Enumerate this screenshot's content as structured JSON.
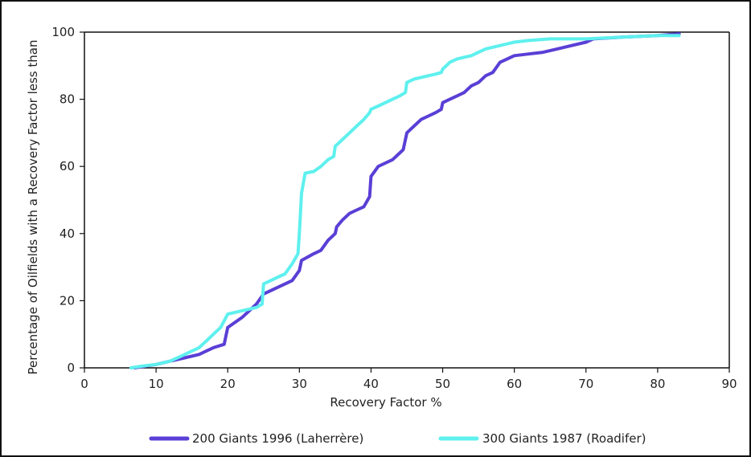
{
  "chart_data": {
    "type": "line",
    "xlabel": "Recovery Factor %",
    "ylabel": "Percentage of Oilfields with a Recovery Factor less than",
    "xlim": [
      0,
      90
    ],
    "ylim": [
      0,
      100
    ],
    "xticks": [
      "0",
      "10",
      "20",
      "30",
      "40",
      "50",
      "60",
      "70",
      "80",
      "90"
    ],
    "yticks": [
      "0",
      "20",
      "40",
      "60",
      "80",
      "100"
    ],
    "grid": false,
    "legend_position": "bottom",
    "series": [
      {
        "name": "200 Giants 1996 (Laherrère)",
        "color": "#5a3fd6",
        "points": [
          [
            7,
            0
          ],
          [
            10,
            1
          ],
          [
            12,
            2
          ],
          [
            14,
            3
          ],
          [
            16,
            4
          ],
          [
            17,
            5
          ],
          [
            18,
            6
          ],
          [
            19.5,
            7
          ],
          [
            20,
            12
          ],
          [
            22,
            15
          ],
          [
            24,
            19
          ],
          [
            25,
            22
          ],
          [
            27,
            24
          ],
          [
            29,
            26
          ],
          [
            30,
            29
          ],
          [
            30.3,
            32
          ],
          [
            32,
            34
          ],
          [
            33,
            35
          ],
          [
            34,
            38
          ],
          [
            35,
            40
          ],
          [
            35.2,
            42
          ],
          [
            36,
            44
          ],
          [
            37,
            46
          ],
          [
            38,
            47
          ],
          [
            39,
            48
          ],
          [
            39.8,
            51
          ],
          [
            40,
            57
          ],
          [
            41,
            60
          ],
          [
            42,
            61
          ],
          [
            43,
            62
          ],
          [
            44,
            64
          ],
          [
            44.5,
            65
          ],
          [
            45,
            70
          ],
          [
            46,
            72
          ],
          [
            47,
            74
          ],
          [
            48,
            75
          ],
          [
            49,
            76
          ],
          [
            49.8,
            77
          ],
          [
            50,
            79
          ],
          [
            51,
            80
          ],
          [
            52,
            81
          ],
          [
            53,
            82
          ],
          [
            54,
            84
          ],
          [
            55,
            85
          ],
          [
            56,
            87
          ],
          [
            57,
            88
          ],
          [
            58,
            91
          ],
          [
            59,
            92
          ],
          [
            60,
            93
          ],
          [
            62,
            93.5
          ],
          [
            64,
            94
          ],
          [
            66,
            95
          ],
          [
            68,
            96
          ],
          [
            70,
            97
          ],
          [
            71,
            98
          ],
          [
            75,
            98.5
          ],
          [
            80,
            99
          ],
          [
            83,
            99.5
          ]
        ]
      },
      {
        "name": "300 Giants 1987 (Roadifer)",
        "color": "#5ef0ee",
        "points": [
          [
            6.5,
            0
          ],
          [
            8,
            0.5
          ],
          [
            10,
            1
          ],
          [
            12,
            2
          ],
          [
            14,
            4
          ],
          [
            15,
            5
          ],
          [
            16,
            6
          ],
          [
            17,
            8
          ],
          [
            18,
            10
          ],
          [
            19,
            12
          ],
          [
            19.5,
            14
          ],
          [
            20,
            16
          ],
          [
            22,
            17
          ],
          [
            24,
            18
          ],
          [
            24.8,
            19
          ],
          [
            25,
            25
          ],
          [
            26,
            26
          ],
          [
            27,
            27
          ],
          [
            28,
            28
          ],
          [
            29,
            31
          ],
          [
            29.8,
            34
          ],
          [
            30,
            40
          ],
          [
            30.3,
            52
          ],
          [
            30.8,
            58
          ],
          [
            32,
            58.5
          ],
          [
            33,
            60
          ],
          [
            34,
            62
          ],
          [
            34.8,
            63
          ],
          [
            35,
            66
          ],
          [
            36,
            68
          ],
          [
            37,
            70
          ],
          [
            38,
            72
          ],
          [
            39,
            74
          ],
          [
            39.8,
            76
          ],
          [
            40,
            77
          ],
          [
            41,
            78
          ],
          [
            42,
            79
          ],
          [
            43,
            80
          ],
          [
            44,
            81
          ],
          [
            44.8,
            82
          ],
          [
            45,
            85
          ],
          [
            46,
            86
          ],
          [
            47,
            86.5
          ],
          [
            48,
            87
          ],
          [
            49,
            87.5
          ],
          [
            49.8,
            88
          ],
          [
            50,
            89
          ],
          [
            51,
            91
          ],
          [
            52,
            92
          ],
          [
            53,
            92.5
          ],
          [
            54,
            93
          ],
          [
            55,
            94
          ],
          [
            56,
            95
          ],
          [
            58,
            96
          ],
          [
            60,
            97
          ],
          [
            62,
            97.5
          ],
          [
            65,
            98
          ],
          [
            70,
            98
          ],
          [
            75,
            98.5
          ],
          [
            80,
            99
          ],
          [
            83,
            99
          ]
        ]
      }
    ]
  }
}
